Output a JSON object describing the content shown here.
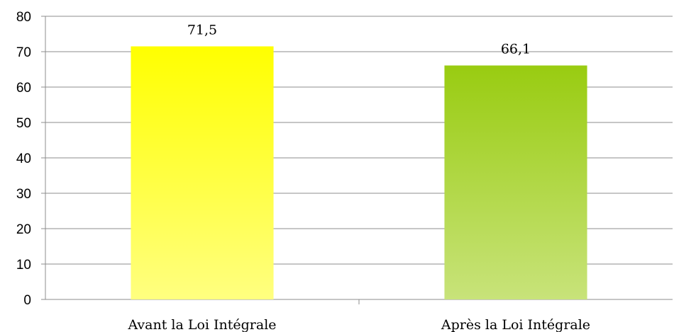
{
  "chart_data": {
    "type": "bar",
    "categories": [
      "Avant la Loi Intégrale",
      "Après la Loi Intégrale"
    ],
    "values": [
      71.5,
      66.1
    ],
    "data_labels": [
      "71,5",
      "66,1"
    ],
    "ylim": [
      0,
      80
    ],
    "yticks": [
      0,
      10,
      20,
      30,
      40,
      50,
      60,
      70,
      80
    ],
    "grid": true,
    "legend": "none",
    "colors": [
      {
        "top": "#ffff00",
        "bottom": "#ffff80"
      },
      {
        "top": "#99cc11",
        "bottom": "#c8e37a"
      }
    ]
  }
}
